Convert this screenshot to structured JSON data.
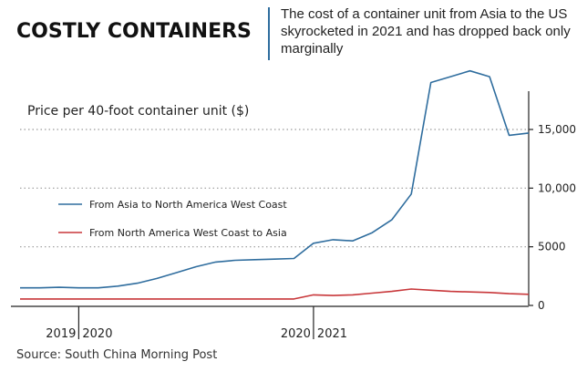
{
  "headline": "COSTLY CONTAINERS",
  "dek": "The cost of a container unit from Asia to the US skyrocketed in 2021 and has dropped back only marginally",
  "source": "Source: South China Morning Post",
  "colors": {
    "asia_series": "#2f6d9e",
    "na_series": "#c8373a",
    "divider": "#2f6d9e"
  },
  "chart_data": {
    "type": "line",
    "title": "Price per 40-foot container unit ($)",
    "xlabel": "",
    "ylabel": "",
    "ylim": [
      0,
      17000
    ],
    "yticks": [
      {
        "value": 0,
        "label": "0"
      },
      {
        "value": 5000,
        "label": "5000"
      },
      {
        "value": 10000,
        "label": "10,000"
      },
      {
        "value": 15000,
        "label": "15,000"
      }
    ],
    "xlim": [
      "2019-10",
      "2021-12"
    ],
    "xticks": [
      {
        "value": "2020-01",
        "label": "2019 2020"
      },
      {
        "value": "2021-01",
        "label": "2020 2021"
      }
    ],
    "grid": "dotted horizontal lines",
    "legend_position": "left",
    "series": [
      {
        "name": "From Asia to North America West Coast",
        "x": [
          "2019-10",
          "2019-11",
          "2019-12",
          "2020-01",
          "2020-02",
          "2020-03",
          "2020-04",
          "2020-05",
          "2020-06",
          "2020-07",
          "2020-08",
          "2020-09",
          "2020-10",
          "2020-11",
          "2020-12",
          "2021-01",
          "2021-02",
          "2021-03",
          "2021-04",
          "2021-05",
          "2021-06",
          "2021-07",
          "2021-08",
          "2021-09",
          "2021-10",
          "2021-11",
          "2021-12"
        ],
        "values": [
          1500,
          1500,
          1550,
          1500,
          1500,
          1650,
          1900,
          2300,
          2800,
          3300,
          3700,
          3850,
          3900,
          3950,
          4000,
          5300,
          5600,
          5500,
          6200,
          7300,
          9500,
          19000,
          19500,
          20000,
          19500,
          14500,
          14700
        ]
      },
      {
        "name": "From North America West Coast to Asia",
        "x": [
          "2019-10",
          "2019-11",
          "2019-12",
          "2020-01",
          "2020-02",
          "2020-03",
          "2020-04",
          "2020-05",
          "2020-06",
          "2020-07",
          "2020-08",
          "2020-09",
          "2020-10",
          "2020-11",
          "2020-12",
          "2021-01",
          "2021-02",
          "2021-03",
          "2021-04",
          "2021-05",
          "2021-06",
          "2021-07",
          "2021-08",
          "2021-09",
          "2021-10",
          "2021-11",
          "2021-12"
        ],
        "values": [
          550,
          550,
          550,
          550,
          550,
          550,
          550,
          550,
          550,
          550,
          550,
          550,
          550,
          550,
          550,
          900,
          850,
          900,
          1050,
          1200,
          1400,
          1300,
          1200,
          1150,
          1100,
          1000,
          950
        ]
      }
    ]
  }
}
